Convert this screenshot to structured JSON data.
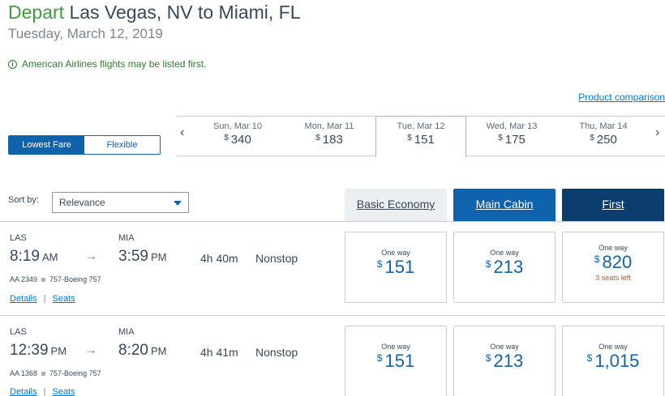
{
  "header": {
    "depart_word": "Depart",
    "route": "Las Vegas, NV to Miami, FL",
    "date": "Tuesday, March 12, 2019"
  },
  "notice": "American Airlines flights may be listed first.",
  "product_comparison": "Product comparison",
  "toggle": {
    "lowest": "Lowest Fare",
    "flexible": "Flexible"
  },
  "nav": {
    "prev": "‹",
    "next": "›"
  },
  "dates": [
    {
      "day": "Sun, Mar 10",
      "currency": "$",
      "price": "340"
    },
    {
      "day": "Mon, Mar 11",
      "currency": "$",
      "price": "183"
    },
    {
      "day": "Tue, Mar 12",
      "currency": "$",
      "price": "151"
    },
    {
      "day": "Wed, Mar 13",
      "currency": "$",
      "price": "175"
    },
    {
      "day": "Thu, Mar 14",
      "currency": "$",
      "price": "250"
    }
  ],
  "sort": {
    "label": "Sort by:",
    "value": "Relevance"
  },
  "cabins": {
    "basic": "Basic Economy",
    "main": "Main Cabin",
    "first": "First"
  },
  "flights": [
    {
      "origin": "LAS",
      "dep_time": "8:19",
      "dep_ampm": "AM",
      "dest": "MIA",
      "arr_time": "3:59",
      "arr_ampm": "PM",
      "duration": "4h  40m",
      "stops": "Nonstop",
      "flight_no": "AA 2349",
      "aircraft": "757-Boeing 757",
      "details": "Details",
      "seats": "Seats",
      "fares": [
        {
          "label": "One way",
          "currency": "$",
          "amount": "151",
          "note": ""
        },
        {
          "label": "One way",
          "currency": "$",
          "amount": "213",
          "note": ""
        },
        {
          "label": "One way",
          "currency": "$",
          "amount": "820",
          "note": "3 seats left"
        }
      ]
    },
    {
      "origin": "LAS",
      "dep_time": "12:39",
      "dep_ampm": "PM",
      "dest": "MIA",
      "arr_time": "8:20",
      "arr_ampm": "PM",
      "duration": "4h  41m",
      "stops": "Nonstop",
      "flight_no": "AA 1368",
      "aircraft": "757-Boeing 757",
      "details": "Details",
      "seats": "Seats",
      "fares": [
        {
          "label": "One way",
          "currency": "$",
          "amount": "151",
          "note": ""
        },
        {
          "label": "One way",
          "currency": "$",
          "amount": "213",
          "note": ""
        },
        {
          "label": "One way",
          "currency": "$",
          "amount": "1,015",
          "note": ""
        }
      ]
    }
  ],
  "arrow_glyph": "→"
}
